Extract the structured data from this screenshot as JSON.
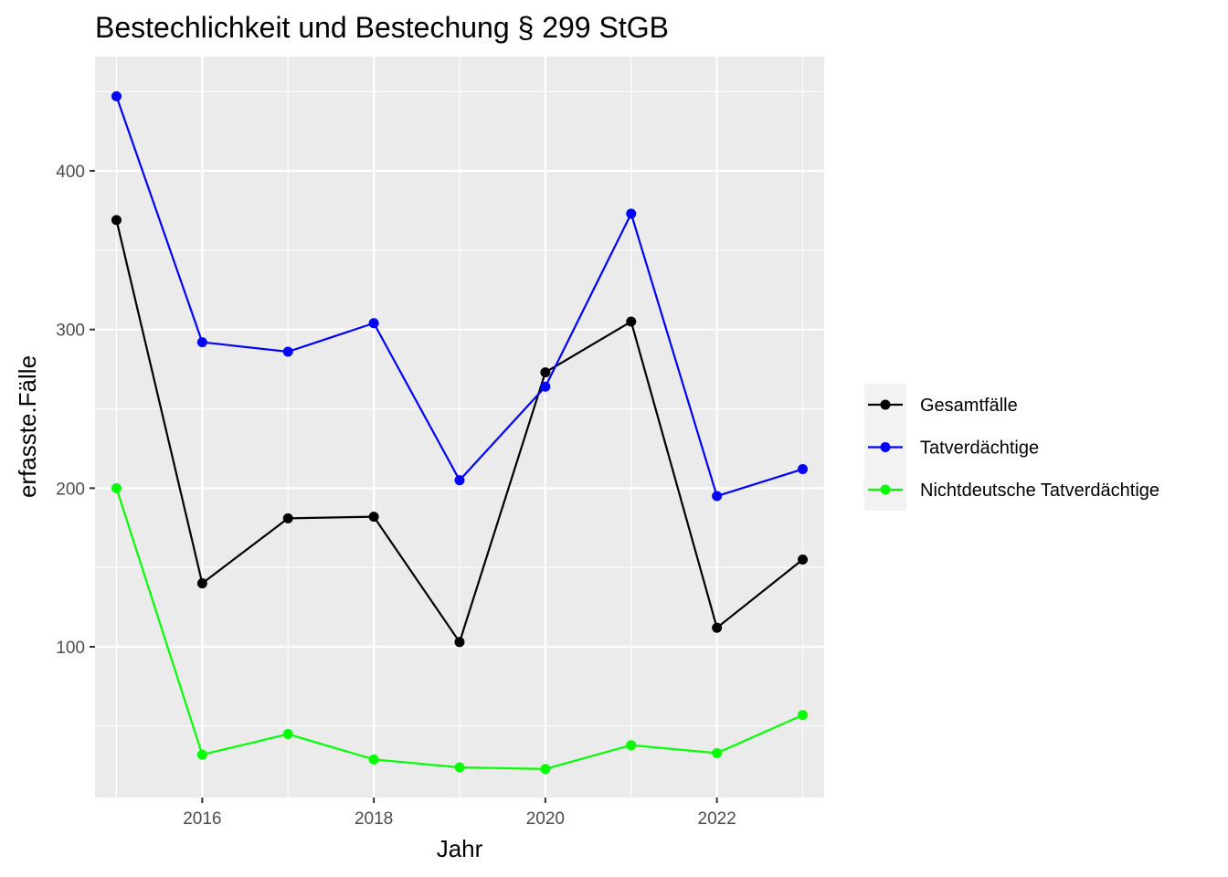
{
  "chart_data": {
    "type": "line",
    "title": "Bestechlichkeit und Bestechung § 299 StGB",
    "xlabel": "Jahr",
    "ylabel": "erfasste.Fälle",
    "x": [
      2015,
      2016,
      2017,
      2018,
      2019,
      2020,
      2021,
      2022,
      2023
    ],
    "xlim": [
      2014.75,
      2023.25
    ],
    "ylim": [
      5,
      472
    ],
    "xticks": [
      2016,
      2018,
      2020,
      2022
    ],
    "yticks": [
      100,
      200,
      300,
      400
    ],
    "grid": true,
    "legend_position": "right",
    "series": [
      {
        "name": "Gesamtfälle",
        "color": "#000000",
        "values": [
          369,
          140,
          181,
          182,
          103,
          273,
          305,
          112,
          155
        ]
      },
      {
        "name": "Tatverdächtige",
        "color": "#0000ff",
        "values": [
          447,
          292,
          286,
          304,
          205,
          264,
          373,
          195,
          212
        ]
      },
      {
        "name": "Nichtdeutsche Tatverdächtige",
        "color": "#00ff00",
        "values": [
          200,
          32,
          45,
          29,
          24,
          23,
          38,
          33,
          57
        ]
      }
    ]
  }
}
